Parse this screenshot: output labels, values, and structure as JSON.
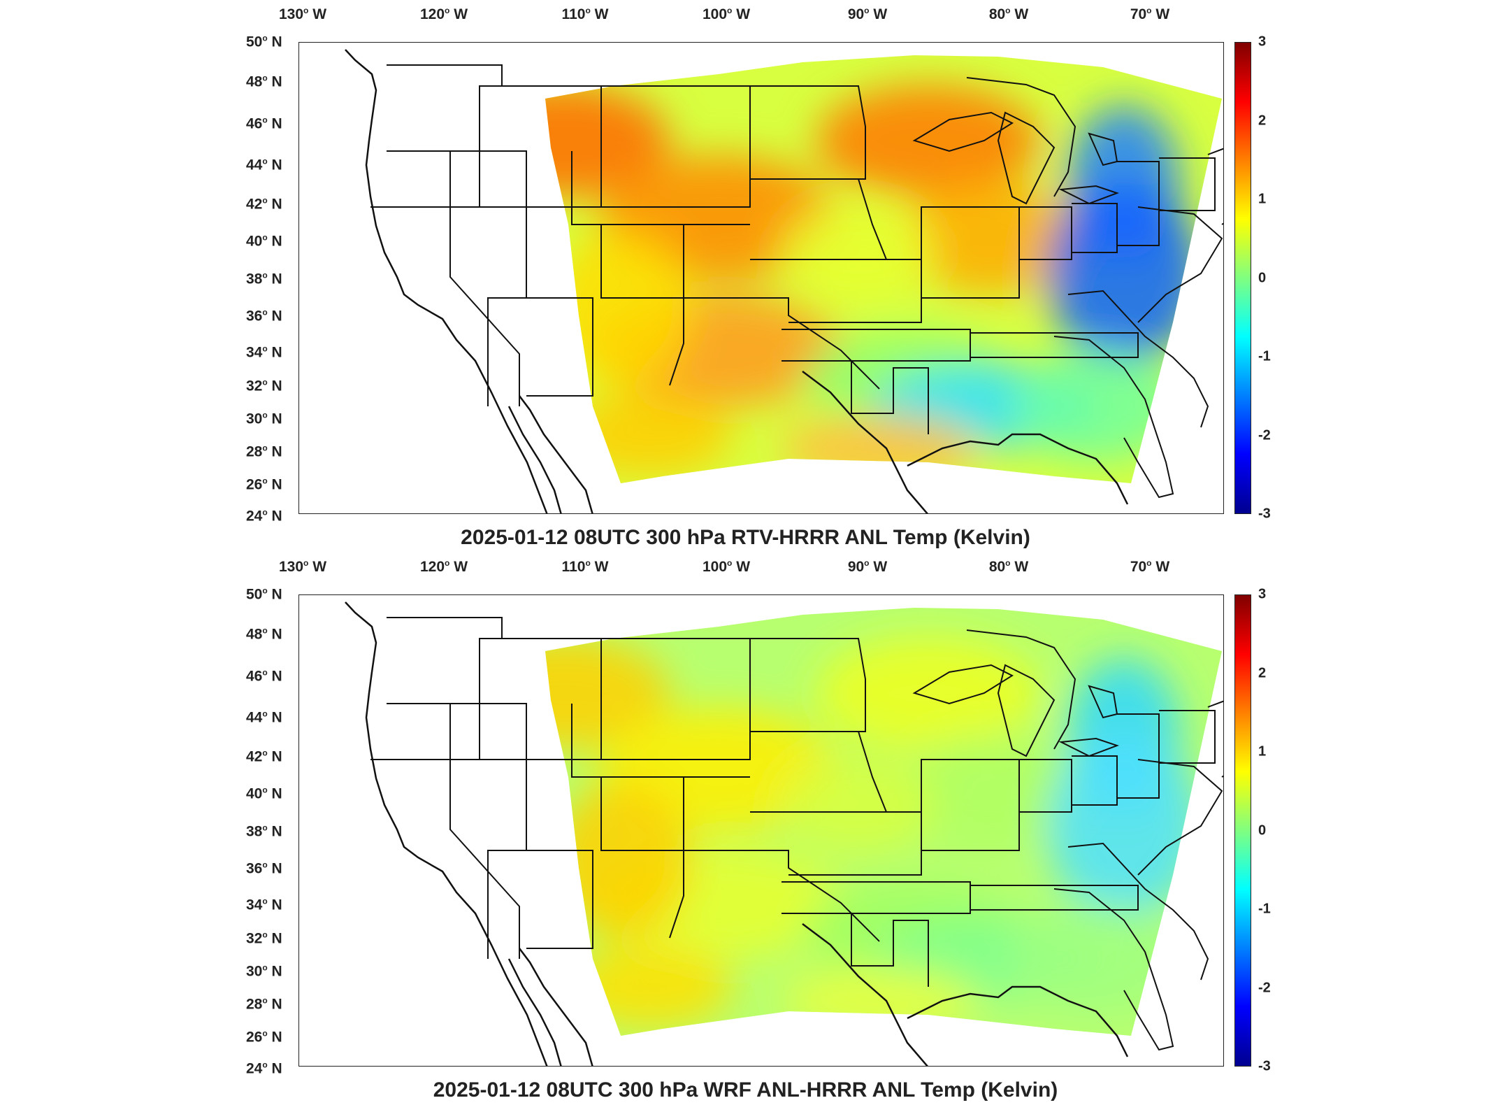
{
  "panels": [
    {
      "title": "2025-01-12 08UTC 300 hPa RTV-HRRR ANL Temp (Kelvin)",
      "style": "rtv"
    },
    {
      "title": "2025-01-12 08UTC 300 hPa WRF ANL-HRRR ANL Temp (Kelvin)",
      "style": "wrf"
    }
  ],
  "lon_labels": [
    "130",
    "120",
    "110",
    "100",
    "90",
    "80",
    "70"
  ],
  "lon_suffix": "W",
  "lat_labels": [
    "50",
    "48",
    "46",
    "44",
    "42",
    "40",
    "38",
    "36",
    "34",
    "32",
    "30",
    "28",
    "26",
    "24"
  ],
  "lat_suffix": "N",
  "colorbar": {
    "ticks": [
      "3",
      "2",
      "1",
      "0",
      "-1",
      "-2",
      "-3"
    ],
    "colormap": "jet",
    "range": [
      -3,
      3
    ],
    "colors": [
      "#00008f",
      "#0000ff",
      "#0080ff",
      "#00ffff",
      "#80ff80",
      "#ffff00",
      "#ff8000",
      "#ff0000",
      "#800000"
    ]
  }
}
